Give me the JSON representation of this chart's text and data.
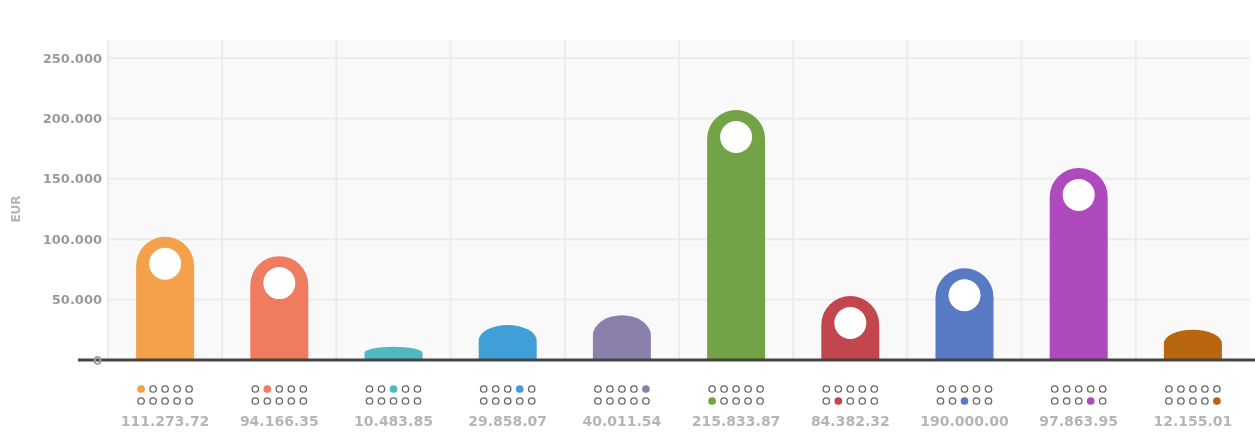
{
  "chart_data": {
    "type": "bar",
    "ylabel": "EUR",
    "categories": [
      "111.273.72",
      "94.166.35",
      "10.483.85",
      "29.858.07",
      "40.011.54",
      "215.833.87",
      "84.382.32",
      "190.000.00",
      "97.863.95",
      "12.155.01"
    ],
    "values": [
      102000,
      86000,
      11000,
      29000,
      37000,
      207000,
      53000,
      76000,
      159000,
      25000
    ],
    "colors": [
      "#f5a04a",
      "#ef7c60",
      "#4fb8c2",
      "#3f9fd6",
      "#8a80ab",
      "#72a346",
      "#c3464f",
      "#5879c4",
      "#ae4abd",
      "#b8650f"
    ],
    "ylim": [
      0,
      250000
    ],
    "yticks": [
      {
        "value": 0,
        "label": "0"
      },
      {
        "value": 50000,
        "label": "50.000"
      },
      {
        "value": 100000,
        "label": "100.000"
      },
      {
        "value": 150000,
        "label": "150.000"
      },
      {
        "value": 200000,
        "label": "200.000"
      },
      {
        "value": 250000,
        "label": "250.000"
      }
    ],
    "grid": true
  }
}
